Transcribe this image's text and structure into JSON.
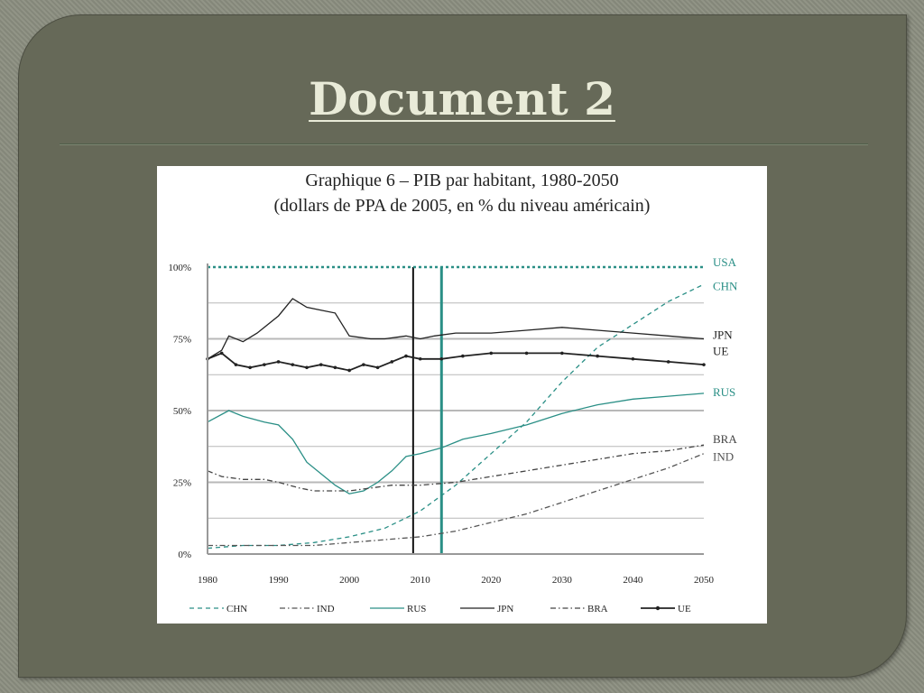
{
  "slide": {
    "title": "Document 2"
  },
  "chart_data": {
    "type": "line",
    "title": "Graphique 6 – PIB par habitant, 1980-2050",
    "subtitle": "(dollars de PPA de 2005, en % du niveau américain)",
    "xlabel": "",
    "ylabel": "",
    "xlim": [
      1980,
      2050
    ],
    "ylim": [
      0,
      100
    ],
    "x_ticks": [
      "1980",
      "1990",
      "2000",
      "2010",
      "2020",
      "2030",
      "2040",
      "2050"
    ],
    "y_ticks": [
      "0%",
      "25%",
      "50%",
      "75%",
      "100%"
    ],
    "grid": true,
    "vertical_markers": [
      2009,
      2013
    ],
    "series": [
      {
        "name": "USA",
        "label": "USA",
        "color": "#2a8f86",
        "style": "dotted",
        "points": [
          [
            1980,
            100
          ],
          [
            2050,
            100
          ]
        ]
      },
      {
        "name": "CHN",
        "label": "CHN",
        "color": "#2a8f86",
        "style": "dashed",
        "points": [
          [
            1980,
            2
          ],
          [
            1985,
            3
          ],
          [
            1990,
            3
          ],
          [
            1995,
            4
          ],
          [
            2000,
            6
          ],
          [
            2005,
            9
          ],
          [
            2010,
            15
          ],
          [
            2015,
            24
          ],
          [
            2020,
            35
          ],
          [
            2025,
            46
          ],
          [
            2030,
            60
          ],
          [
            2035,
            72
          ],
          [
            2040,
            80
          ],
          [
            2045,
            88
          ],
          [
            2050,
            94
          ]
        ]
      },
      {
        "name": "JPN",
        "label": "JPN",
        "color": "#222222",
        "style": "solid",
        "points": [
          [
            1980,
            68
          ],
          [
            1982,
            71
          ],
          [
            1983,
            76
          ],
          [
            1985,
            74
          ],
          [
            1987,
            77
          ],
          [
            1990,
            83
          ],
          [
            1992,
            89
          ],
          [
            1994,
            86
          ],
          [
            1996,
            85
          ],
          [
            1998,
            84
          ],
          [
            2000,
            76
          ],
          [
            2003,
            75
          ],
          [
            2005,
            75
          ],
          [
            2008,
            76
          ],
          [
            2010,
            75
          ],
          [
            2012,
            76
          ],
          [
            2015,
            77
          ],
          [
            2020,
            77
          ],
          [
            2025,
            78
          ],
          [
            2030,
            79
          ],
          [
            2035,
            78
          ],
          [
            2040,
            77
          ],
          [
            2045,
            76
          ],
          [
            2050,
            75
          ]
        ]
      },
      {
        "name": "UE",
        "label": "UE",
        "color": "#222222",
        "style": "marker",
        "points": [
          [
            1980,
            68
          ],
          [
            1982,
            70
          ],
          [
            1984,
            66
          ],
          [
            1986,
            65
          ],
          [
            1988,
            66
          ],
          [
            1990,
            67
          ],
          [
            1992,
            66
          ],
          [
            1994,
            65
          ],
          [
            1996,
            66
          ],
          [
            1998,
            65
          ],
          [
            2000,
            64
          ],
          [
            2002,
            66
          ],
          [
            2004,
            65
          ],
          [
            2006,
            67
          ],
          [
            2008,
            69
          ],
          [
            2010,
            68
          ],
          [
            2013,
            68
          ],
          [
            2016,
            69
          ],
          [
            2020,
            70
          ],
          [
            2025,
            70
          ],
          [
            2030,
            70
          ],
          [
            2035,
            69
          ],
          [
            2040,
            68
          ],
          [
            2045,
            67
          ],
          [
            2050,
            66
          ]
        ]
      },
      {
        "name": "RUS",
        "label": "RUS",
        "color": "#2a8f86",
        "style": "solid",
        "points": [
          [
            1980,
            46
          ],
          [
            1983,
            50
          ],
          [
            1985,
            48
          ],
          [
            1988,
            46
          ],
          [
            1990,
            45
          ],
          [
            1992,
            40
          ],
          [
            1994,
            32
          ],
          [
            1996,
            28
          ],
          [
            1998,
            24
          ],
          [
            2000,
            21
          ],
          [
            2002,
            22
          ],
          [
            2004,
            25
          ],
          [
            2006,
            29
          ],
          [
            2008,
            34
          ],
          [
            2010,
            35
          ],
          [
            2013,
            37
          ],
          [
            2016,
            40
          ],
          [
            2020,
            42
          ],
          [
            2025,
            45
          ],
          [
            2030,
            49
          ],
          [
            2035,
            52
          ],
          [
            2040,
            54
          ],
          [
            2045,
            55
          ],
          [
            2050,
            56
          ]
        ]
      },
      {
        "name": "BRA",
        "label": "BRA",
        "color": "#444444",
        "style": "dashdot",
        "points": [
          [
            1980,
            29
          ],
          [
            1982,
            27
          ],
          [
            1985,
            26
          ],
          [
            1988,
            26
          ],
          [
            1990,
            25
          ],
          [
            1993,
            23
          ],
          [
            1995,
            22
          ],
          [
            1998,
            22
          ],
          [
            2000,
            22
          ],
          [
            2003,
            23
          ],
          [
            2006,
            24
          ],
          [
            2010,
            24
          ],
          [
            2015,
            25
          ],
          [
            2020,
            27
          ],
          [
            2025,
            29
          ],
          [
            2030,
            31
          ],
          [
            2035,
            33
          ],
          [
            2040,
            35
          ],
          [
            2045,
            36
          ],
          [
            2050,
            38
          ]
        ]
      },
      {
        "name": "IND",
        "label": "IND",
        "color": "#555555",
        "style": "dashdot",
        "points": [
          [
            1980,
            3
          ],
          [
            1985,
            3
          ],
          [
            1990,
            3
          ],
          [
            1995,
            3
          ],
          [
            2000,
            4
          ],
          [
            2005,
            5
          ],
          [
            2010,
            6
          ],
          [
            2015,
            8
          ],
          [
            2020,
            11
          ],
          [
            2025,
            14
          ],
          [
            2030,
            18
          ],
          [
            2035,
            22
          ],
          [
            2040,
            26
          ],
          [
            2045,
            30
          ],
          [
            2050,
            35
          ]
        ]
      }
    ],
    "legend": {
      "placement": "bottom",
      "entries": [
        {
          "label": "CHN",
          "style": "dashed",
          "color": "#2a8f86"
        },
        {
          "label": "IND",
          "style": "dashdot",
          "color": "#555555"
        },
        {
          "label": "RUS",
          "style": "solid",
          "color": "#2a8f86"
        },
        {
          "label": "JPN",
          "style": "solid",
          "color": "#222222"
        },
        {
          "label": "BRA",
          "style": "dashdot",
          "color": "#444444"
        },
        {
          "label": "UE",
          "style": "marker",
          "color": "#222222"
        }
      ]
    }
  }
}
